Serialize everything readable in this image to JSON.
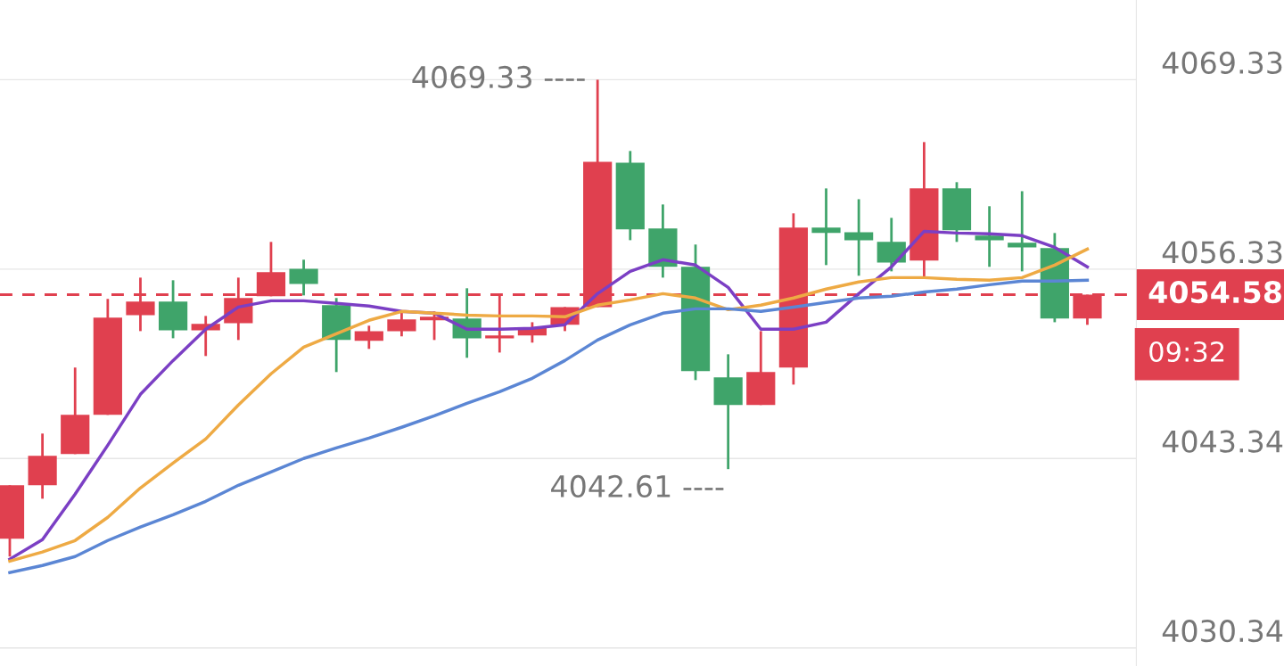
{
  "chart_data": {
    "type": "candlestick",
    "categories": [
      null,
      null,
      null,
      null,
      null,
      null,
      null,
      null,
      null,
      null,
      null,
      null,
      null,
      null,
      null,
      null,
      null,
      null,
      null,
      null,
      null,
      null,
      null,
      null,
      null,
      null,
      null,
      null,
      null,
      null,
      null,
      null,
      null,
      null
    ],
    "ohlc": [
      [
        4037.83,
        4041.5,
        4036.61,
        4041.5
      ],
      [
        4041.5,
        4045.05,
        4040.58,
        4043.52
      ],
      [
        4043.64,
        4049.58,
        4043.64,
        4046.33
      ],
      [
        4046.33,
        4054.29,
        4046.33,
        4053.0
      ],
      [
        4053.18,
        4055.75,
        4052.08,
        4054.1
      ],
      [
        4054.1,
        4055.57,
        4051.59,
        4052.14
      ],
      [
        4052.14,
        4053.12,
        4050.37,
        4052.57
      ],
      [
        4052.63,
        4055.75,
        4051.47,
        4054.35
      ],
      [
        4054.47,
        4058.2,
        4054.47,
        4056.12
      ],
      [
        4056.36,
        4056.98,
        4054.53,
        4055.32
      ],
      [
        4053.86,
        4054.35,
        4049.27,
        4051.47
      ],
      [
        4051.41,
        4052.45,
        4050.86,
        4052.08
      ],
      [
        4052.08,
        4053.49,
        4051.72,
        4052.88
      ],
      [
        4052.82,
        4053.43,
        4051.47,
        4053.06
      ],
      [
        4052.94,
        4055.02,
        4050.25,
        4051.59
      ],
      [
        4051.59,
        4054.53,
        4050.61,
        4051.78
      ],
      [
        4051.78,
        4052.69,
        4051.29,
        4052.33
      ],
      [
        4052.51,
        4053.73,
        4052.08,
        4053.73
      ],
      [
        4053.73,
        4069.33,
        4053.73,
        4063.7
      ],
      [
        4063.64,
        4064.44,
        4058.32,
        4059.06
      ],
      [
        4059.12,
        4060.77,
        4055.75,
        4056.49
      ],
      [
        4056.49,
        4058.02,
        4048.72,
        4049.33
      ],
      [
        4048.9,
        4050.49,
        4042.61,
        4047.01
      ],
      [
        4047.01,
        4052.08,
        4047.01,
        4049.27
      ],
      [
        4049.58,
        4060.16,
        4048.41,
        4059.18
      ],
      [
        4059.18,
        4061.87,
        4056.61,
        4058.81
      ],
      [
        4058.87,
        4061.13,
        4055.88,
        4058.32
      ],
      [
        4058.2,
        4059.85,
        4056.18,
        4056.79
      ],
      [
        4056.92,
        4065.05,
        4055.69,
        4061.87
      ],
      [
        4061.87,
        4062.3,
        4058.2,
        4059.0
      ],
      [
        4058.63,
        4060.65,
        4056.49,
        4058.32
      ],
      [
        4058.14,
        4061.68,
        4056.18,
        4057.83
      ],
      [
        4057.77,
        4058.81,
        4052.69,
        4052.94
      ],
      [
        4052.94,
        4054.58,
        4052.51,
        4054.58
      ]
    ],
    "colors": [
      "#e0404f",
      "#e0404f",
      "#e0404f",
      "#e0404f",
      "#e0404f",
      "#3fa46a",
      "#e0404f",
      "#e0404f",
      "#e0404f",
      "#3fa46a",
      "#3fa46a",
      "#e0404f",
      "#e0404f",
      "#e0404f",
      "#3fa46a",
      "#e0404f",
      "#e0404f",
      "#e0404f",
      "#e0404f",
      "#3fa46a",
      "#3fa46a",
      "#3fa46a",
      "#3fa46a",
      "#e0404f",
      "#e0404f",
      "#3fa46a",
      "#3fa46a",
      "#3fa46a",
      "#e0404f",
      "#3fa46a",
      "#3fa46a",
      "#3fa46a",
      "#3fa46a",
      "#e0404f"
    ],
    "series": [
      {
        "type": "line",
        "color": "#7b3fc4",
        "values": [
          4036.43,
          4037.77,
          4040.89,
          4044.25,
          4047.74,
          4050.06,
          4052.21,
          4053.73,
          4054.16,
          4054.16,
          4053.98,
          4053.8,
          4053.43,
          4053.31,
          4052.21,
          4052.21,
          4052.27,
          4052.51,
          4054.65,
          4056.18,
          4056.98,
          4056.61,
          4055.08,
          4052.21,
          4052.21,
          4052.69,
          4054.65,
          4056.49,
          4058.93,
          4058.81,
          4058.75,
          4058.63,
          4057.83,
          4056.49
        ]
      },
      {
        "type": "line",
        "color": "#eeaa44",
        "values": [
          4036.3,
          4036.92,
          4037.71,
          4039.3,
          4041.32,
          4043.03,
          4044.68,
          4047.01,
          4049.15,
          4050.98,
          4051.9,
          4052.82,
          4053.43,
          4053.31,
          4053.18,
          4053.12,
          4053.12,
          4053.06,
          4053.86,
          4054.22,
          4054.65,
          4054.35,
          4053.55,
          4053.86,
          4054.35,
          4054.96,
          4055.45,
          4055.75,
          4055.75,
          4055.63,
          4055.57,
          4055.75,
          4056.61,
          4057.71
        ]
      },
      {
        "type": "line",
        "color": "#5b86d4",
        "values": [
          4035.51,
          4036.0,
          4036.61,
          4037.71,
          4038.63,
          4039.48,
          4040.4,
          4041.5,
          4042.42,
          4043.34,
          4044.07,
          4044.74,
          4045.48,
          4046.27,
          4047.13,
          4047.92,
          4048.84,
          4050.06,
          4051.47,
          4052.51,
          4053.31,
          4053.61,
          4053.61,
          4053.43,
          4053.73,
          4054.04,
          4054.35,
          4054.47,
          4054.77,
          4054.96,
          4055.26,
          4055.51,
          4055.51,
          4055.57
        ]
      }
    ],
    "ylim": [
      4029.1,
      4074.8
    ],
    "yticks": [
      4069.33,
      4056.33,
      4043.34,
      4030.34
    ],
    "grid": "y",
    "tick_labels": "y",
    "ref_lines": [
      {
        "axis": "y",
        "value": 4054.58,
        "label": "4054.58",
        "color": "#e0404f",
        "line_style": "dashed"
      }
    ],
    "annotations": [
      "4069.33 ----",
      "4042.61 ----",
      "09:32"
    ]
  }
}
